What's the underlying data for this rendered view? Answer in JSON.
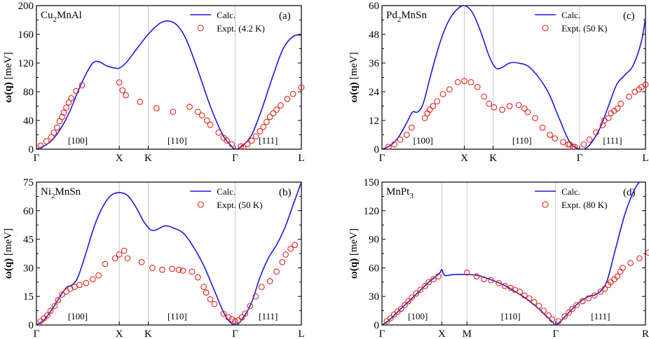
{
  "chart_data": [
    {
      "type": "line",
      "panel": "(a)",
      "material": {
        "base": "Cu",
        "sub": "2",
        "rest": "MnAl"
      },
      "ylabel": {
        "omega": "ω(",
        "q": "q",
        "close": ")",
        "unit": "[meV]"
      },
      "ylim": [
        0,
        200
      ],
      "yticks": [
        "0",
        "40",
        "80",
        "120",
        "160",
        "200"
      ],
      "path_positions": [
        0,
        1,
        1.35,
        2.4,
        3.2
      ],
      "path_labels": [
        "Γ",
        "X",
        "K",
        "Γ",
        "L"
      ],
      "directions": [
        {
          "text": "[100]",
          "x": 0.5
        },
        {
          "text": "[110]",
          "x": 1.7
        },
        {
          "text": "[111]",
          "x": 2.8
        }
      ],
      "legend": {
        "calc": "Calc.",
        "expt": "Expt. (4.2 K)"
      },
      "series": [
        {
          "name": "Calc.",
          "x": [
            0,
            0.1,
            0.2,
            0.3,
            0.4,
            0.5,
            0.6,
            0.68,
            0.75,
            0.85,
            0.95,
            1.0,
            1.08,
            1.2,
            1.35,
            1.5,
            1.62,
            1.72,
            1.82,
            1.95,
            2.1,
            2.25,
            2.35,
            2.4,
            2.48,
            2.6,
            2.72,
            2.85,
            2.98,
            3.1,
            3.2
          ],
          "values": [
            0,
            5,
            14,
            30,
            52,
            80,
            105,
            120,
            122,
            116,
            113,
            113,
            120,
            138,
            160,
            176,
            178,
            170,
            150,
            110,
            60,
            20,
            5,
            0,
            4,
            20,
            55,
            100,
            140,
            157,
            159
          ]
        },
        {
          "name": "Expt. (4.2 K)",
          "x": [
            0.05,
            0.12,
            0.18,
            0.21,
            0.25,
            0.28,
            0.31,
            0.33,
            0.36,
            0.39,
            0.42,
            0.48,
            0.55,
            1.0,
            1.04,
            1.08,
            1.25,
            1.45,
            1.65,
            1.85,
            1.95,
            2.0,
            2.06,
            2.1,
            2.2,
            2.26,
            2.3,
            2.36,
            2.47,
            2.5,
            2.55,
            2.6,
            2.65,
            2.7,
            2.74,
            2.78,
            2.82,
            2.86,
            2.9,
            2.95,
            3.03,
            3.1,
            3.2
          ],
          "values": [
            5,
            11,
            17,
            23,
            30,
            39,
            45,
            51,
            58,
            65,
            71,
            81,
            89,
            93,
            82,
            75,
            66,
            57,
            52,
            59,
            52,
            47,
            40,
            34,
            23,
            16,
            12,
            7,
            4,
            3,
            7,
            12,
            18,
            25,
            31,
            38,
            45,
            50,
            55,
            61,
            70,
            77,
            86
          ]
        }
      ]
    },
    {
      "type": "line",
      "panel": "(c)",
      "material": {
        "base": "Pd",
        "sub": "2",
        "rest": "MnSn"
      },
      "ylabel": {
        "omega": "ω(",
        "q": "q",
        "close": ")",
        "unit": "[meV]"
      },
      "ylim": [
        0,
        60
      ],
      "yticks": [
        "0",
        "12",
        "24",
        "36",
        "48",
        "60"
      ],
      "path_positions": [
        0,
        1,
        1.35,
        2.4,
        3.2
      ],
      "path_labels": [
        "Γ",
        "X",
        "K",
        "Γ",
        "L"
      ],
      "directions": [
        {
          "text": "[100]",
          "x": 0.5
        },
        {
          "text": "[110]",
          "x": 1.7
        },
        {
          "text": "[111]",
          "x": 2.8
        }
      ],
      "legend": {
        "calc": "Calc.",
        "expt": "Expt. (50 K)"
      },
      "series": [
        {
          "name": "Calc.",
          "x": [
            0,
            0.1,
            0.2,
            0.3,
            0.37,
            0.43,
            0.5,
            0.6,
            0.7,
            0.8,
            0.9,
            1.0,
            1.1,
            1.2,
            1.3,
            1.38,
            1.45,
            1.55,
            1.65,
            1.8,
            2.0,
            2.15,
            2.28,
            2.4,
            2.48,
            2.55,
            2.65,
            2.75,
            2.85,
            2.95,
            3.05,
            3.15,
            3.2
          ],
          "values": [
            0,
            1.5,
            5,
            11,
            15.5,
            15.5,
            19,
            32,
            44,
            53,
            58,
            60,
            57,
            49,
            39,
            34,
            34,
            36,
            36,
            34,
            25,
            13,
            3,
            0,
            0.5,
            3,
            9,
            18,
            27,
            31,
            35,
            45,
            55
          ]
        },
        {
          "name": "Expt. (50 K)",
          "x": [
            0.08,
            0.15,
            0.22,
            0.3,
            0.36,
            0.52,
            0.55,
            0.58,
            0.62,
            0.67,
            0.74,
            0.82,
            0.92,
            1.0,
            1.08,
            1.16,
            1.24,
            1.3,
            1.36,
            1.46,
            1.55,
            1.66,
            1.73,
            1.77,
            1.86,
            1.95,
            2.04,
            2.1,
            2.2,
            2.26,
            2.28,
            2.32,
            2.34,
            2.45,
            2.52,
            2.6,
            2.68,
            2.7,
            2.75,
            2.78,
            2.82,
            2.86,
            2.9,
            3.0,
            3.07,
            3.12,
            3.15,
            3.2
          ],
          "values": [
            1,
            2,
            4,
            6,
            9,
            13,
            15,
            16.5,
            18,
            20,
            23,
            25,
            28,
            28.5,
            28,
            26,
            22,
            19,
            17.5,
            16.5,
            18,
            18.5,
            17,
            15.5,
            13,
            9,
            6,
            4.5,
            3,
            2,
            2,
            1,
            1,
            2,
            4,
            7,
            10,
            12,
            13,
            15,
            16,
            17,
            19,
            22,
            24,
            25,
            26,
            27
          ]
        }
      ]
    },
    {
      "type": "line",
      "panel": "(b)",
      "material": {
        "base": "Ni",
        "sub": "2",
        "rest": "MnSn"
      },
      "ylabel": {
        "omega": "ω(",
        "q": "q",
        "close": ")",
        "unit": "[meV]"
      },
      "ylim": [
        0,
        75
      ],
      "yticks": [
        "0",
        "15",
        "30",
        "45",
        "60",
        "75"
      ],
      "path_positions": [
        0,
        1,
        1.35,
        2.4,
        3.2
      ],
      "path_labels": [
        "Γ",
        "X",
        "K",
        "Γ",
        "L"
      ],
      "directions": [
        {
          "text": "[100]",
          "x": 0.5
        },
        {
          "text": "[110]",
          "x": 1.7
        },
        {
          "text": "[111]",
          "x": 2.8
        }
      ],
      "legend": {
        "calc": "Calc.",
        "expt": "Expt. (50 K)"
      },
      "series": [
        {
          "name": "Calc.",
          "x": [
            0,
            0.1,
            0.2,
            0.3,
            0.37,
            0.43,
            0.5,
            0.6,
            0.7,
            0.8,
            0.9,
            1.0,
            1.1,
            1.2,
            1.3,
            1.38,
            1.45,
            1.55,
            1.65,
            1.8,
            2.0,
            2.15,
            2.28,
            2.4,
            2.5,
            2.6,
            2.7,
            2.8,
            2.9,
            3.0,
            3.1,
            3.2
          ],
          "values": [
            0,
            3,
            9,
            16,
            20,
            21,
            25,
            38,
            52,
            62,
            68,
            69.5,
            68,
            62,
            54,
            50,
            50,
            52,
            51,
            47,
            33,
            18,
            5,
            0,
            4,
            12,
            25,
            35,
            42,
            51,
            63,
            75
          ]
        },
        {
          "name": "Expt. (50 K)",
          "x": [
            0.05,
            0.09,
            0.13,
            0.17,
            0.22,
            0.26,
            0.31,
            0.36,
            0.41,
            0.46,
            0.52,
            0.6,
            0.68,
            0.75,
            0.83,
            0.95,
            1.0,
            1.06,
            1.1,
            1.27,
            1.4,
            1.52,
            1.64,
            1.72,
            1.77,
            1.88,
            1.95,
            2.02,
            2.05,
            2.1,
            2.15,
            2.26,
            2.32,
            2.36,
            2.4,
            2.44,
            2.48,
            2.52,
            2.58,
            2.65,
            2.72,
            2.82,
            2.9,
            2.97,
            3.01,
            3.07,
            3.12
          ],
          "values": [
            2,
            3.5,
            5,
            7.5,
            10,
            13,
            16,
            17.5,
            19,
            20,
            21,
            22,
            24,
            26,
            32,
            35,
            37,
            39,
            35,
            33,
            30,
            29,
            29.5,
            29,
            28.5,
            28,
            25,
            20,
            17,
            13.5,
            11,
            6,
            4,
            3,
            2,
            2.5,
            4,
            6,
            10,
            15,
            20,
            23,
            28,
            33,
            37,
            40,
            42
          ]
        }
      ]
    },
    {
      "type": "line",
      "panel": "(d)",
      "material": {
        "base": "MnPt",
        "sub": "3",
        "rest": ""
      },
      "ylabel": {
        "omega": "ω(",
        "q": "q",
        "close": ")",
        "unit": "[meV]"
      },
      "ylim": [
        0,
        150
      ],
      "yticks": [
        "0",
        "30",
        "60",
        "90",
        "120",
        "150"
      ],
      "path_positions": [
        0,
        1,
        1.42,
        2.9,
        4.4
      ],
      "path_labels": [
        "Γ",
        "X",
        "M",
        "Γ",
        "R"
      ],
      "directions": [
        {
          "text": "[100]",
          "x": 0.6
        },
        {
          "text": "[110]",
          "x": 2.15
        },
        {
          "text": "[111]",
          "x": 3.65
        }
      ],
      "legend": {
        "calc": "Calc.",
        "expt": "Expt. (80 K)"
      },
      "series": [
        {
          "name": "Calc.",
          "x": [
            0,
            0.1,
            0.2,
            0.3,
            0.4,
            0.5,
            0.6,
            0.7,
            0.8,
            0.9,
            0.97,
            1.0,
            1.05,
            1.2,
            1.42,
            1.6,
            1.8,
            2.0,
            2.2,
            2.4,
            2.6,
            2.75,
            2.85,
            2.9,
            3.0,
            3.15,
            3.3,
            3.45,
            3.6,
            3.75,
            3.9,
            4.05,
            4.2,
            4.3,
            4.4
          ],
          "values": [
            0,
            4,
            10,
            16,
            22,
            28,
            34,
            40,
            46,
            51,
            55,
            58,
            52,
            53,
            53,
            52,
            48,
            43,
            36,
            28,
            18,
            9,
            3,
            0,
            5,
            15,
            24,
            30,
            33,
            45,
            80,
            115,
            140,
            150,
            153
          ]
        },
        {
          "name": "Expt. (80 K)",
          "x": [
            0.08,
            0.14,
            0.2,
            0.26,
            0.32,
            0.38,
            0.44,
            0.5,
            0.57,
            0.64,
            0.72,
            0.78,
            0.86,
            0.94,
            1.42,
            1.58,
            1.7,
            1.82,
            1.95,
            2.05,
            2.15,
            2.22,
            2.3,
            2.38,
            2.46,
            2.54,
            2.62,
            2.7,
            2.78,
            2.84,
            2.95,
            3.05,
            3.12,
            3.18,
            3.25,
            3.35,
            3.45,
            3.55,
            3.65,
            3.72,
            3.78,
            3.82,
            3.88,
            3.93,
            3.98,
            4.02,
            4.15,
            4.3,
            4.45
          ],
          "values": [
            4,
            7,
            11,
            14,
            17,
            21,
            25,
            29,
            33,
            37,
            41,
            45,
            48,
            51,
            55,
            51,
            48,
            47,
            44,
            41,
            39,
            37,
            35,
            31,
            28,
            24,
            20,
            15,
            10,
            6,
            4,
            9,
            13,
            17,
            21,
            25,
            28,
            31,
            35,
            38,
            42,
            45,
            48,
            51,
            56,
            60,
            65,
            70,
            76
          ]
        }
      ]
    }
  ]
}
